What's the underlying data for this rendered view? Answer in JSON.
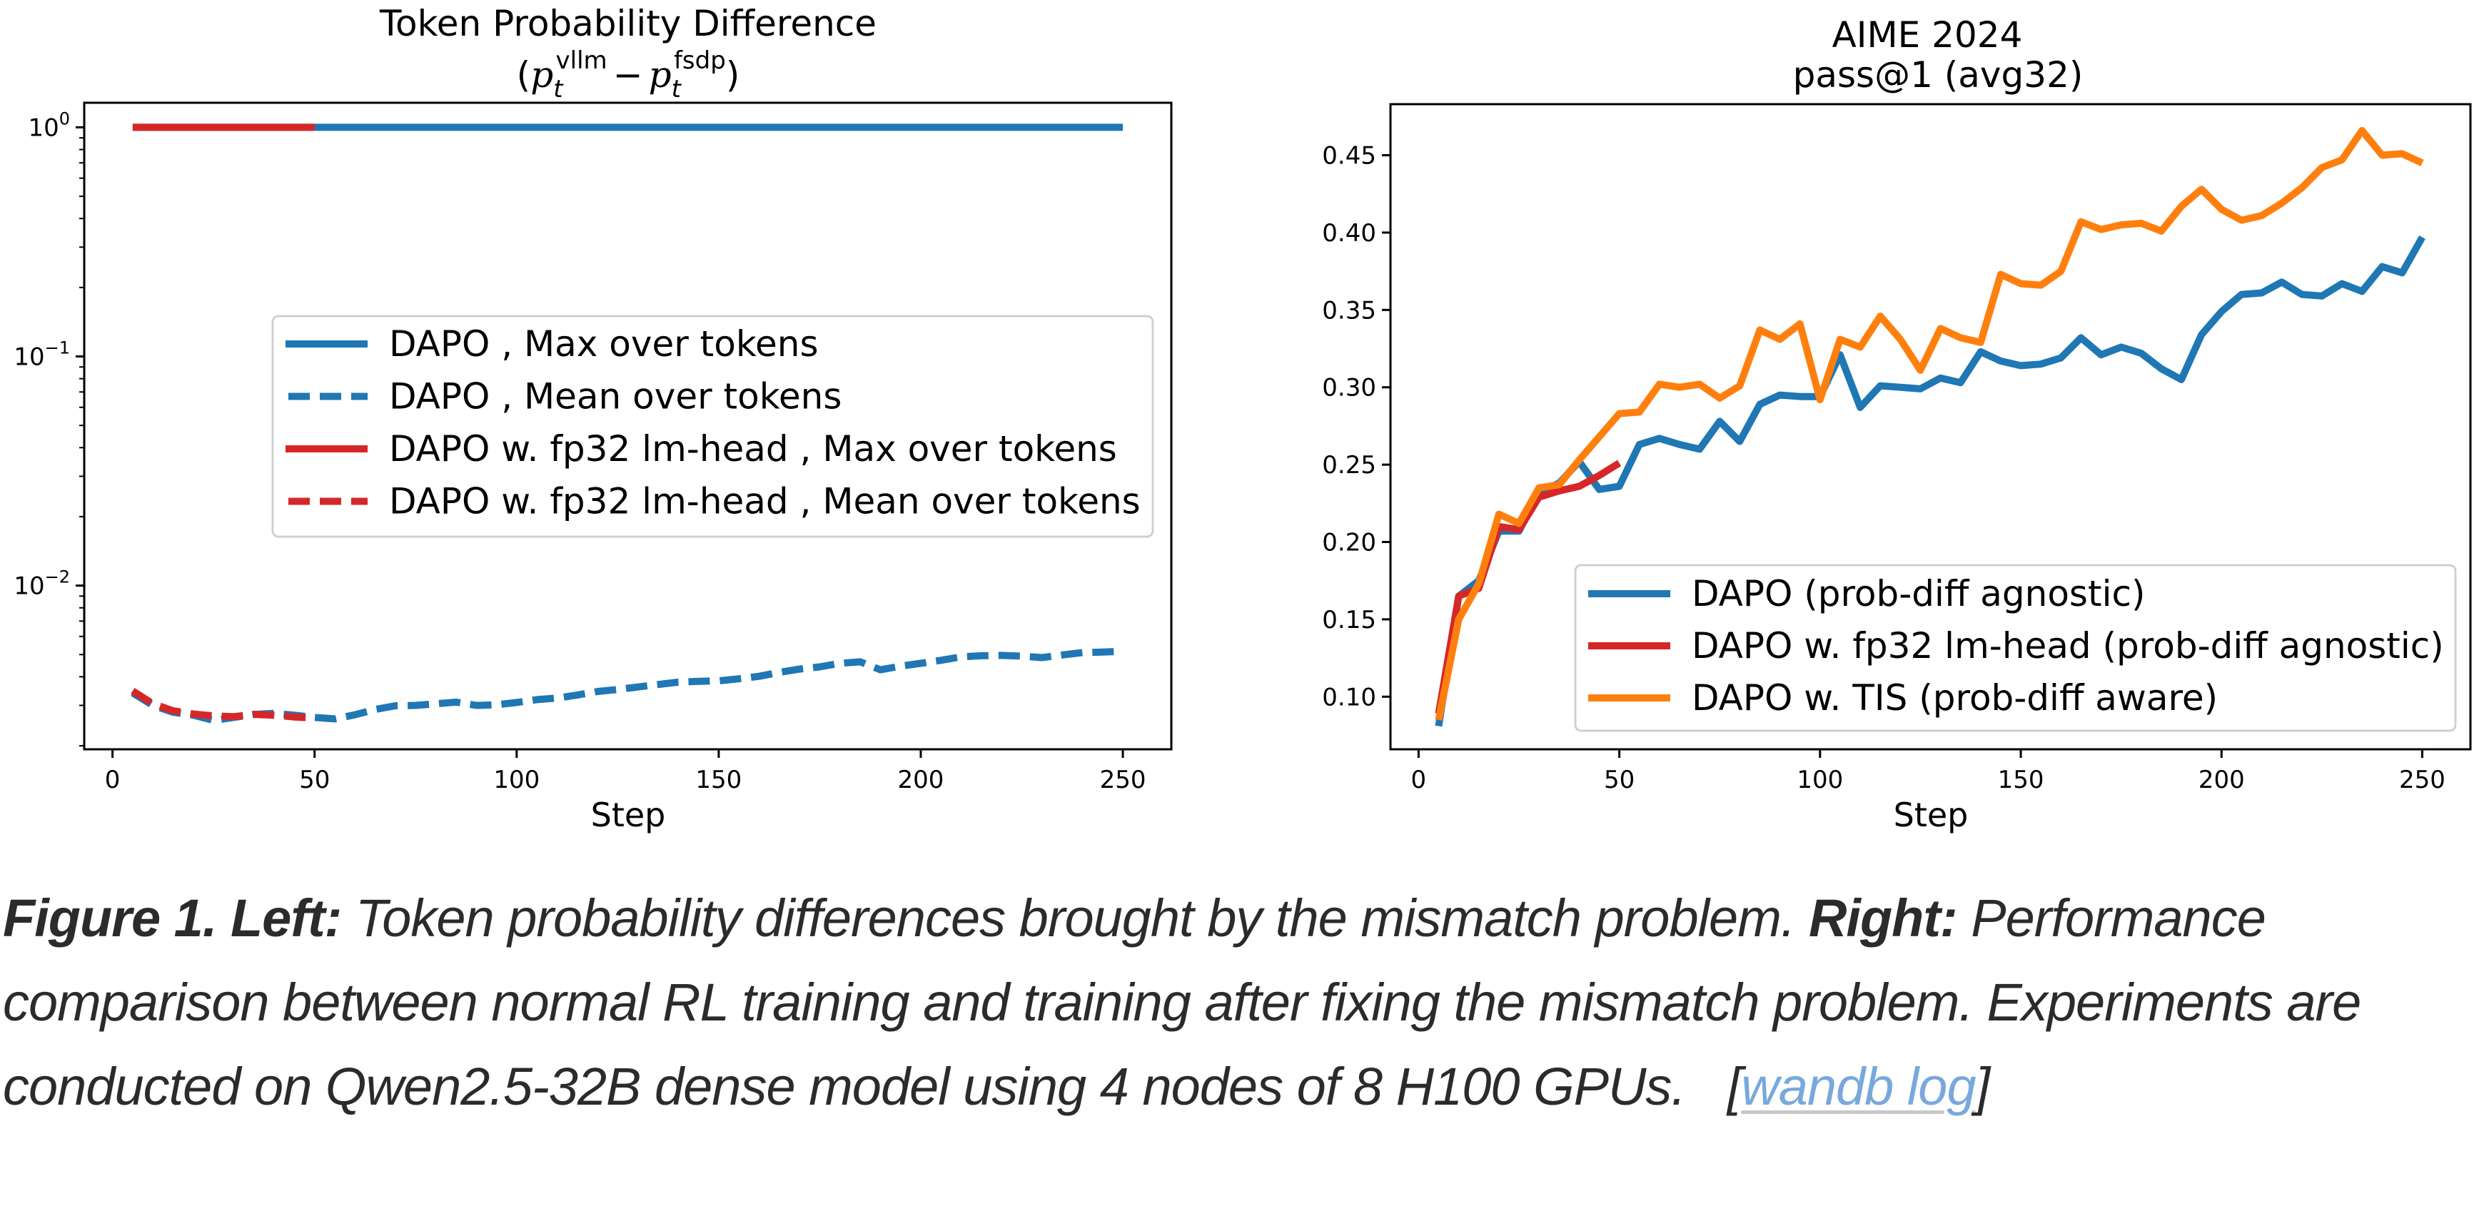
{
  "chart_data": [
    {
      "type": "line",
      "title": "Token Probability Difference",
      "subtitle": "(p_t^vllm − p_t^fsdp)",
      "subtitle_parts": {
        "open": "(",
        "p1": "p",
        "sub1": "t",
        "sup1": "vllm",
        "minus": "−",
        "p2": "p",
        "sub2": "t",
        "sup2": "fsdp",
        "close": ")"
      },
      "xlabel": "Step",
      "ylabel": "",
      "yscale": "log",
      "xlim": [
        -7,
        262
      ],
      "ylim": [
        0.00193,
        1.28
      ],
      "xticks": [
        0,
        50,
        100,
        150,
        200,
        250
      ],
      "xtick_labels": [
        "0",
        "50",
        "100",
        "150",
        "200",
        "250"
      ],
      "yticks": [
        1,
        0.1,
        0.01
      ],
      "ytick_labels": [
        {
          "base": "10",
          "exp": "0"
        },
        {
          "base": "10",
          "exp": "−1"
        },
        {
          "base": "10",
          "exp": "−2"
        }
      ],
      "grid": false,
      "legend_position": "center-right",
      "series": [
        {
          "name": "DAPO , Max over tokens",
          "color": "#1f77b4",
          "style": "solid",
          "x": [
            5,
            250
          ],
          "values": [
            1.0,
            1.0
          ]
        },
        {
          "name": "DAPO , Mean over tokens",
          "color": "#1f77b4",
          "style": "dashed",
          "x": [
            5,
            10,
            15,
            20,
            25,
            30,
            35,
            40,
            45,
            50,
            55,
            60,
            65,
            70,
            75,
            80,
            85,
            90,
            95,
            100,
            105,
            110,
            115,
            120,
            125,
            130,
            135,
            140,
            145,
            150,
            155,
            160,
            165,
            170,
            175,
            180,
            185,
            190,
            195,
            200,
            205,
            210,
            215,
            220,
            225,
            230,
            235,
            240,
            245,
            250
          ],
          "values": [
            0.0034,
            0.003,
            0.0028,
            0.00272,
            0.00258,
            0.00266,
            0.00274,
            0.00277,
            0.00272,
            0.00266,
            0.00262,
            0.00273,
            0.00288,
            0.00299,
            0.003,
            0.00305,
            0.0031,
            0.003,
            0.00302,
            0.00309,
            0.00318,
            0.00323,
            0.00333,
            0.00345,
            0.00352,
            0.00361,
            0.0037,
            0.00379,
            0.00382,
            0.00384,
            0.00392,
            0.00402,
            0.00418,
            0.00432,
            0.00442,
            0.00458,
            0.00465,
            0.00429,
            0.00445,
            0.00458,
            0.00472,
            0.00489,
            0.00494,
            0.00496,
            0.00492,
            0.00485,
            0.00498,
            0.0051,
            0.00513,
            0.00517
          ]
        },
        {
          "name": "DAPO w. fp32 lm-head , Max over tokens",
          "color": "#d62728",
          "style": "solid",
          "x": [
            5,
            50
          ],
          "values": [
            1.0,
            1.0
          ]
        },
        {
          "name": "DAPO w. fp32 lm-head , Mean over tokens",
          "color": "#d62728",
          "style": "dashed",
          "x": [
            5,
            10,
            15,
            20,
            25,
            30,
            35,
            40,
            45,
            50
          ],
          "values": [
            0.00347,
            0.00305,
            0.00284,
            0.00275,
            0.0027,
            0.00268,
            0.00274,
            0.00272,
            0.00267,
            0.00264
          ]
        }
      ]
    },
    {
      "type": "line",
      "title": "AIME 2024",
      "subtitle": "pass@1 (avg32)",
      "xlabel": "Step",
      "ylabel": "",
      "yscale": "linear",
      "xlim": [
        -7,
        262
      ],
      "ylim": [
        0.066,
        0.483
      ],
      "xticks": [
        0,
        50,
        100,
        150,
        200,
        250
      ],
      "xtick_labels": [
        "0",
        "50",
        "100",
        "150",
        "200",
        "250"
      ],
      "yticks": [
        0.1,
        0.15,
        0.2,
        0.25,
        0.3,
        0.35,
        0.4,
        0.45
      ],
      "ytick_labels": [
        "0.10",
        "0.15",
        "0.20",
        "0.25",
        "0.30",
        "0.35",
        "0.40",
        "0.45"
      ],
      "grid": false,
      "legend_position": "lower-right",
      "series": [
        {
          "name": "DAPO (prob-diff agnostic)",
          "color": "#1f77b4",
          "style": "solid",
          "x": [
            5,
            10,
            15,
            20,
            25,
            30,
            35,
            40,
            45,
            50,
            55,
            60,
            65,
            70,
            75,
            80,
            85,
            90,
            95,
            100,
            105,
            110,
            115,
            120,
            125,
            130,
            135,
            140,
            145,
            150,
            155,
            160,
            165,
            170,
            175,
            180,
            185,
            190,
            195,
            200,
            205,
            210,
            215,
            220,
            225,
            230,
            235,
            240,
            245,
            250
          ],
          "values": [
            0.081,
            0.165,
            0.175,
            0.207,
            0.207,
            0.232,
            0.238,
            0.252,
            0.234,
            0.236,
            0.263,
            0.267,
            0.263,
            0.26,
            0.278,
            0.265,
            0.289,
            0.295,
            0.294,
            0.294,
            0.321,
            0.287,
            0.301,
            0.3,
            0.299,
            0.306,
            0.303,
            0.323,
            0.317,
            0.314,
            0.315,
            0.319,
            0.332,
            0.321,
            0.326,
            0.322,
            0.312,
            0.305,
            0.334,
            0.349,
            0.36,
            0.361,
            0.368,
            0.36,
            0.359,
            0.367,
            0.362,
            0.378,
            0.374,
            0.397
          ]
        },
        {
          "name": "DAPO w. fp32 lm-head (prob-diff agnostic)",
          "color": "#d62728",
          "style": "solid",
          "x": [
            5,
            10,
            15,
            20,
            25,
            30,
            35,
            40,
            45,
            50
          ],
          "values": [
            0.089,
            0.165,
            0.17,
            0.21,
            0.208,
            0.229,
            0.233,
            0.236,
            0.243,
            0.251
          ]
        },
        {
          "name": "DAPO w. TIS (prob-diff aware)",
          "color": "#ff7f0e",
          "style": "solid",
          "x": [
            5,
            10,
            15,
            20,
            25,
            30,
            35,
            40,
            45,
            50,
            55,
            60,
            65,
            70,
            75,
            80,
            85,
            90,
            95,
            100,
            105,
            110,
            115,
            120,
            125,
            130,
            135,
            140,
            145,
            150,
            155,
            160,
            165,
            170,
            175,
            180,
            185,
            190,
            195,
            200,
            205,
            210,
            215,
            220,
            225,
            230,
            235,
            240,
            245,
            250
          ],
          "values": [
            0.085,
            0.15,
            0.173,
            0.218,
            0.212,
            0.235,
            0.237,
            0.253,
            0.268,
            0.283,
            0.284,
            0.302,
            0.3,
            0.302,
            0.293,
            0.301,
            0.337,
            0.331,
            0.341,
            0.292,
            0.331,
            0.326,
            0.346,
            0.331,
            0.311,
            0.338,
            0.332,
            0.329,
            0.373,
            0.367,
            0.366,
            0.375,
            0.407,
            0.402,
            0.405,
            0.406,
            0.401,
            0.417,
            0.428,
            0.415,
            0.408,
            0.411,
            0.419,
            0.429,
            0.442,
            0.447,
            0.466,
            0.45,
            0.451,
            0.445
          ]
        }
      ]
    }
  ],
  "caption": {
    "figure_label": "Figure 1.",
    "left_label": "Left:",
    "left_text": "Token probability differences brought by the mismatch problem.",
    "right_label": "Right:",
    "right_text": "Performance comparison between normal RL training and training after fixing the mismatch problem. Experiments are conducted on Qwen2.5-32B dense model using 4 nodes of 8 H100 GPUs.",
    "link_open": "[",
    "link_text": "wandb log",
    "link_close": "]",
    "link_color": "#78a8dc"
  }
}
